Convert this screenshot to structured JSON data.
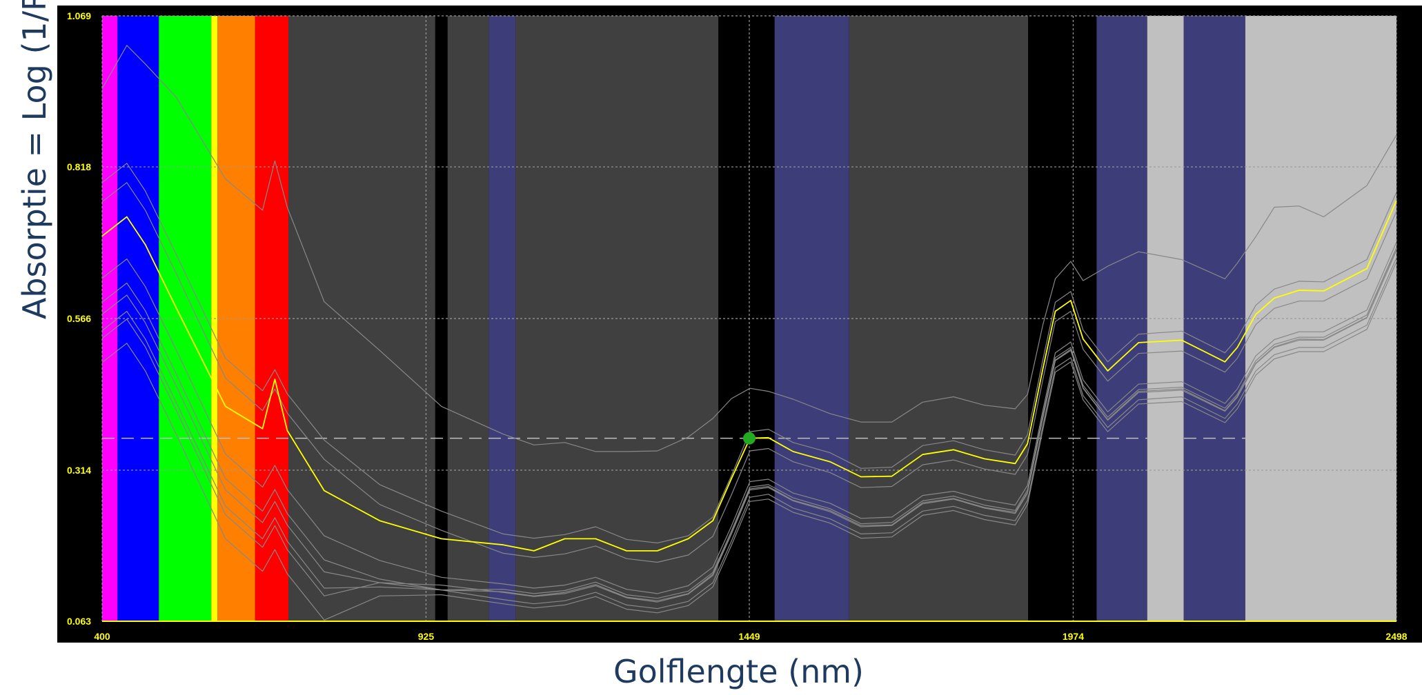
{
  "chart_data": {
    "type": "line",
    "title": "",
    "xlabel": "Golflengte (nm)",
    "ylabel": "Absorptie = Log (1/R)",
    "xlim": [
      400,
      2498
    ],
    "ylim": [
      0.063,
      1.069
    ],
    "x_ticks": [
      400,
      925,
      1449,
      1974,
      2498
    ],
    "x_tick_labels": [
      "400",
      "925",
      "1449",
      "1974",
      "2498"
    ],
    "y_ticks": [
      0.063,
      0.314,
      0.566,
      0.818,
      1.069
    ],
    "y_tick_labels": [
      "0.063",
      "0.314",
      "0.566",
      "0.818",
      "1.069"
    ],
    "grid": true,
    "reference_line_y": 0.367,
    "background": "#000000",
    "tick_label_color": "#ffff00",
    "bands": [
      {
        "from": 400,
        "to": 425,
        "color": "#ff00ff"
      },
      {
        "from": 425,
        "to": 492,
        "color": "#0000ff"
      },
      {
        "from": 492,
        "to": 577,
        "color": "#00ff00"
      },
      {
        "from": 577,
        "to": 587,
        "color": "#ffff00"
      },
      {
        "from": 587,
        "to": 648,
        "color": "#ff8000"
      },
      {
        "from": 648,
        "to": 702,
        "color": "#ff0000"
      },
      {
        "from": 702,
        "to": 940,
        "color": "#404040"
      },
      {
        "from": 940,
        "to": 960,
        "color": "#000000"
      },
      {
        "from": 960,
        "to": 1027,
        "color": "#404040"
      },
      {
        "from": 1027,
        "to": 1070,
        "color": "#3d3d7a"
      },
      {
        "from": 1070,
        "to": 1399,
        "color": "#404040"
      },
      {
        "from": 1399,
        "to": 1490,
        "color": "#000000"
      },
      {
        "from": 1490,
        "to": 1611,
        "color": "#3d3d7a"
      },
      {
        "from": 1611,
        "to": 1901,
        "color": "#404040"
      },
      {
        "from": 1901,
        "to": 2012,
        "color": "#000000"
      },
      {
        "from": 2012,
        "to": 2094,
        "color": "#3d3d7a"
      },
      {
        "from": 2094,
        "to": 2153,
        "color": "#c0c0c0"
      },
      {
        "from": 2153,
        "to": 2253,
        "color": "#3d3d7a"
      },
      {
        "from": 2253,
        "to": 2498,
        "color": "#c0c0c0"
      }
    ],
    "highlight_point": {
      "x": 1449,
      "y": 0.367,
      "color": "#22aa22"
    },
    "series": [
      {
        "color": "#888888",
        "x": [
          400,
          440,
          470,
          520,
          600,
          660,
          680,
          700,
          760,
          850,
          950,
          1050,
          1100,
          1150,
          1200,
          1250,
          1300,
          1350,
          1390,
          1420,
          1450,
          1480,
          1520,
          1580,
          1630,
          1680,
          1730,
          1780,
          1830,
          1880,
          1900,
          1925,
          1945,
          1970,
          1990,
          2030,
          2080,
          2150,
          2220,
          2240,
          2270,
          2300,
          2340,
          2380,
          2450,
          2498
        ],
        "y": [
          0.948,
          1.02,
          0.989,
          0.934,
          0.798,
          0.746,
          0.828,
          0.751,
          0.594,
          0.513,
          0.42,
          0.374,
          0.356,
          0.36,
          0.345,
          0.345,
          0.346,
          0.369,
          0.4,
          0.433,
          0.45,
          0.445,
          0.432,
          0.408,
          0.394,
          0.394,
          0.427,
          0.436,
          0.422,
          0.416,
          0.44,
          0.556,
          0.632,
          0.661,
          0.629,
          0.653,
          0.677,
          0.664,
          0.632,
          0.658,
          0.702,
          0.751,
          0.753,
          0.735,
          0.787,
          0.871
        ]
      },
      {
        "color": "#888888",
        "x": [
          400,
          440,
          470,
          520,
          600,
          660,
          680,
          700,
          760,
          850,
          950,
          1050,
          1100,
          1150,
          1200,
          1250,
          1300,
          1350,
          1390,
          1420,
          1450,
          1480,
          1520,
          1580,
          1630,
          1680,
          1730,
          1780,
          1830,
          1880,
          1900,
          1925,
          1945,
          1970,
          1990,
          2030,
          2080,
          2150,
          2220,
          2240,
          2270,
          2300,
          2340,
          2380,
          2450,
          2498
        ],
        "y": [
          0.792,
          0.824,
          0.778,
          0.673,
          0.5,
          0.446,
          0.481,
          0.441,
          0.364,
          0.29,
          0.246,
          0.208,
          0.201,
          0.207,
          0.22,
          0.199,
          0.193,
          0.205,
          0.236,
          0.305,
          0.378,
          0.382,
          0.36,
          0.343,
          0.317,
          0.319,
          0.355,
          0.363,
          0.348,
          0.339,
          0.373,
          0.498,
          0.593,
          0.611,
          0.547,
          0.494,
          0.54,
          0.545,
          0.509,
          0.533,
          0.588,
          0.615,
          0.628,
          0.627,
          0.664,
          0.776
        ]
      },
      {
        "color": "#888888",
        "x": [
          400,
          440,
          470,
          520,
          600,
          660,
          680,
          700,
          760,
          850,
          950,
          1050,
          1100,
          1150,
          1200,
          1250,
          1300,
          1350,
          1390,
          1420,
          1450,
          1480,
          1520,
          1580,
          1630,
          1680,
          1730,
          1780,
          1830,
          1880,
          1900,
          1925,
          1945,
          1970,
          1990,
          2030,
          2080,
          2150,
          2220,
          2240,
          2270,
          2300,
          2340,
          2380,
          2450,
          2498
        ],
        "y": [
          0.76,
          0.792,
          0.746,
          0.641,
          0.467,
          0.413,
          0.449,
          0.409,
          0.332,
          0.257,
          0.214,
          0.176,
          0.169,
          0.175,
          0.188,
          0.167,
          0.161,
          0.173,
          0.204,
          0.273,
          0.346,
          0.35,
          0.328,
          0.31,
          0.285,
          0.287,
          0.323,
          0.331,
          0.316,
          0.307,
          0.34,
          0.465,
          0.561,
          0.578,
          0.515,
          0.462,
          0.508,
          0.512,
          0.477,
          0.5,
          0.556,
          0.583,
          0.595,
          0.595,
          0.632,
          0.744
        ]
      },
      {
        "color": "#888888",
        "x": [
          400,
          440,
          470,
          520,
          600,
          660,
          680,
          700,
          760,
          850,
          950,
          1050,
          1100,
          1150,
          1200,
          1250,
          1300,
          1350,
          1390,
          1420,
          1450,
          1480,
          1520,
          1580,
          1630,
          1680,
          1730,
          1780,
          1830,
          1880,
          1900,
          1925,
          1945,
          1970,
          1990,
          2030,
          2080,
          2150,
          2220,
          2240,
          2270,
          2300,
          2340,
          2380,
          2450,
          2498
        ],
        "y": [
          0.633,
          0.665,
          0.619,
          0.514,
          0.341,
          0.286,
          0.322,
          0.282,
          0.205,
          0.164,
          0.136,
          0.125,
          0.118,
          0.123,
          0.136,
          0.116,
          0.109,
          0.122,
          0.153,
          0.221,
          0.295,
          0.299,
          0.276,
          0.259,
          0.234,
          0.236,
          0.272,
          0.279,
          0.265,
          0.256,
          0.289,
          0.414,
          0.509,
          0.527,
          0.464,
          0.411,
          0.457,
          0.461,
          0.425,
          0.449,
          0.504,
          0.531,
          0.544,
          0.544,
          0.58,
          0.693
        ]
      },
      {
        "color": "#888888",
        "x": [
          400,
          440,
          470,
          520,
          600,
          660,
          680,
          700,
          760,
          850,
          950,
          1050,
          1100,
          1150,
          1200,
          1250,
          1300,
          1350,
          1390,
          1420,
          1450,
          1480,
          1520,
          1580,
          1630,
          1680,
          1730,
          1780,
          1830,
          1880,
          1900,
          1925,
          1945,
          1970,
          1990,
          2030,
          2080,
          2150,
          2220,
          2240,
          2270,
          2300,
          2340,
          2380,
          2450,
          2498
        ],
        "y": [
          0.593,
          0.625,
          0.579,
          0.474,
          0.3,
          0.246,
          0.282,
          0.242,
          0.165,
          0.133,
          0.115,
          0.116,
          0.109,
          0.114,
          0.128,
          0.107,
          0.101,
          0.113,
          0.144,
          0.213,
          0.286,
          0.29,
          0.268,
          0.25,
          0.225,
          0.227,
          0.263,
          0.271,
          0.256,
          0.247,
          0.281,
          0.406,
          0.501,
          0.518,
          0.455,
          0.402,
          0.448,
          0.452,
          0.417,
          0.44,
          0.496,
          0.523,
          0.535,
          0.535,
          0.572,
          0.684
        ]
      },
      {
        "color": "#888888",
        "x": [
          400,
          440,
          470,
          520,
          600,
          660,
          680,
          700,
          760,
          850,
          950,
          1050,
          1100,
          1150,
          1200,
          1250,
          1300,
          1350,
          1390,
          1420,
          1450,
          1480,
          1520,
          1580,
          1630,
          1680,
          1730,
          1780,
          1830,
          1880,
          1900,
          1925,
          1945,
          1970,
          1990,
          2030,
          2080,
          2150,
          2220,
          2240,
          2270,
          2300,
          2340,
          2380,
          2450,
          2498
        ],
        "y": [
          0.546,
          0.578,
          0.532,
          0.427,
          0.254,
          0.2,
          0.235,
          0.196,
          0.118,
          0.12,
          0.115,
          0.099,
          0.092,
          0.097,
          0.111,
          0.09,
          0.084,
          0.096,
          0.127,
          0.196,
          0.269,
          0.274,
          0.251,
          0.233,
          0.208,
          0.21,
          0.246,
          0.254,
          0.239,
          0.23,
          0.264,
          0.389,
          0.484,
          0.501,
          0.438,
          0.385,
          0.431,
          0.436,
          0.4,
          0.424,
          0.479,
          0.506,
          0.518,
          0.518,
          0.555,
          0.667
        ]
      },
      {
        "color": "#888888",
        "x": [
          400,
          440,
          470,
          520,
          600,
          660,
          680,
          700,
          760,
          850,
          950,
          1050,
          1100,
          1150,
          1200,
          1250,
          1300,
          1350,
          1390,
          1420,
          1450,
          1480,
          1520,
          1580,
          1630,
          1680,
          1730,
          1780,
          1830,
          1880,
          1900,
          1925,
          1945,
          1970,
          1990,
          2030,
          2080,
          2150,
          2220,
          2240,
          2270,
          2300,
          2340,
          2380,
          2450,
          2498
        ],
        "y": [
          0.493,
          0.525,
          0.479,
          0.374,
          0.2,
          0.146,
          0.182,
          0.142,
          0.065,
          0.105,
          0.107,
          0.092,
          0.085,
          0.09,
          0.104,
          0.083,
          0.077,
          0.089,
          0.12,
          0.189,
          0.262,
          0.266,
          0.244,
          0.226,
          0.201,
          0.203,
          0.239,
          0.247,
          0.232,
          0.223,
          0.257,
          0.382,
          0.477,
          0.494,
          0.431,
          0.378,
          0.424,
          0.428,
          0.393,
          0.416,
          0.472,
          0.499,
          0.511,
          0.511,
          0.548,
          0.66
        ]
      },
      {
        "color": "#888888",
        "x": [
          400,
          440,
          470,
          520,
          600,
          660,
          680,
          700,
          760,
          850,
          950,
          1050,
          1100,
          1150,
          1200,
          1250,
          1300,
          1350,
          1390,
          1420,
          1450,
          1480,
          1520,
          1580,
          1630,
          1680,
          1730,
          1780,
          1830,
          1880,
          1900,
          1925,
          1945,
          1970,
          1990,
          2030,
          2080,
          2150,
          2220,
          2240,
          2270,
          2300,
          2340,
          2380,
          2450,
          2498
        ],
        "y": [
          0.573,
          0.605,
          0.559,
          0.454,
          0.281,
          0.227,
          0.262,
          0.223,
          0.145,
          0.127,
          0.115,
          0.112,
          0.105,
          0.111,
          0.124,
          0.103,
          0.097,
          0.109,
          0.141,
          0.209,
          0.283,
          0.287,
          0.264,
          0.247,
          0.222,
          0.223,
          0.26,
          0.267,
          0.252,
          0.244,
          0.277,
          0.402,
          0.497,
          0.515,
          0.451,
          0.398,
          0.445,
          0.449,
          0.413,
          0.437,
          0.492,
          0.519,
          0.532,
          0.531,
          0.568,
          0.681
        ]
      },
      {
        "color": "#888888",
        "x": [
          400,
          440,
          470,
          520,
          600,
          660,
          680,
          700,
          760,
          850,
          950,
          1050,
          1100,
          1150,
          1200,
          1250,
          1300,
          1350,
          1390,
          1420,
          1450,
          1480,
          1520,
          1580,
          1630,
          1680,
          1730,
          1780,
          1830,
          1880,
          1900,
          1925,
          1945,
          1970,
          1990,
          2030,
          2080,
          2150,
          2220,
          2240,
          2270,
          2300,
          2340,
          2380,
          2450,
          2498
        ],
        "y": [
          0.533,
          0.565,
          0.519,
          0.414,
          0.24,
          0.186,
          0.222,
          0.182,
          0.105,
          0.127,
          0.123,
          0.111,
          0.104,
          0.109,
          0.122,
          0.102,
          0.095,
          0.108,
          0.139,
          0.208,
          0.281,
          0.285,
          0.263,
          0.245,
          0.22,
          0.222,
          0.258,
          0.266,
          0.251,
          0.242,
          0.276,
          0.401,
          0.496,
          0.513,
          0.45,
          0.397,
          0.443,
          0.447,
          0.412,
          0.435,
          0.491,
          0.518,
          0.53,
          0.53,
          0.567,
          0.679
        ]
      },
      {
        "color": "#ffff00",
        "x": [
          400,
          440,
          470,
          520,
          600,
          660,
          680,
          700,
          760,
          850,
          950,
          1050,
          1100,
          1150,
          1200,
          1250,
          1300,
          1350,
          1390,
          1420,
          1450,
          1480,
          1520,
          1580,
          1630,
          1680,
          1730,
          1780,
          1830,
          1880,
          1900,
          1925,
          1945,
          1970,
          1990,
          2030,
          2080,
          2150,
          2220,
          2240,
          2270,
          2300,
          2340,
          2380,
          2450,
          2498
        ],
        "y": [
          0.703,
          0.735,
          0.689,
          0.584,
          0.42,
          0.383,
          0.465,
          0.38,
          0.28,
          0.23,
          0.2,
          0.19,
          0.18,
          0.2,
          0.2,
          0.18,
          0.18,
          0.2,
          0.23,
          0.3,
          0.367,
          0.368,
          0.345,
          0.328,
          0.303,
          0.304,
          0.34,
          0.348,
          0.333,
          0.325,
          0.358,
          0.483,
          0.578,
          0.596,
          0.532,
          0.479,
          0.526,
          0.53,
          0.494,
          0.518,
          0.573,
          0.6,
          0.613,
          0.612,
          0.649,
          0.762
        ]
      }
    ]
  }
}
